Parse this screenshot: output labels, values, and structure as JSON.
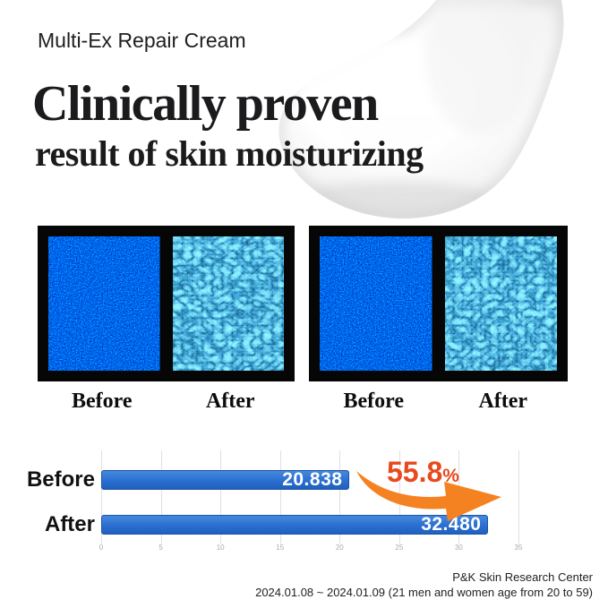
{
  "header": {
    "product_name": "Multi-Ex Repair Cream",
    "title_line1": "Clinically proven",
    "title_line2": "result of skin moisturizing"
  },
  "comparison": {
    "panels": [
      {
        "before_label": "Before",
        "after_label": "After"
      },
      {
        "before_label": "Before",
        "after_label": "After"
      }
    ]
  },
  "chart_data": {
    "type": "bar",
    "orientation": "horizontal",
    "title": "",
    "categories": [
      "Before",
      "After"
    ],
    "values": [
      20.838,
      32.48
    ],
    "value_labels": [
      "20.838",
      "32.480"
    ],
    "annotation": {
      "text": "55.8",
      "suffix": "%"
    },
    "xlim": [
      0,
      35
    ],
    "x_ticks": [
      0,
      5,
      10,
      15,
      20,
      25,
      30,
      35
    ],
    "grid": true,
    "colors": {
      "bar": "#2a6ed0",
      "bar_border": "#1b54a6",
      "annotation_text": "#e8491d",
      "arrow": "#f58220",
      "gridline": "#e0e0e0",
      "tick_label": "#aaaaaa"
    }
  },
  "footer": {
    "line1": "P&K Skin Research Center",
    "line2": "2024.01.08 ~ 2024.01.09 (21 men and women age from 20 to 59)"
  }
}
